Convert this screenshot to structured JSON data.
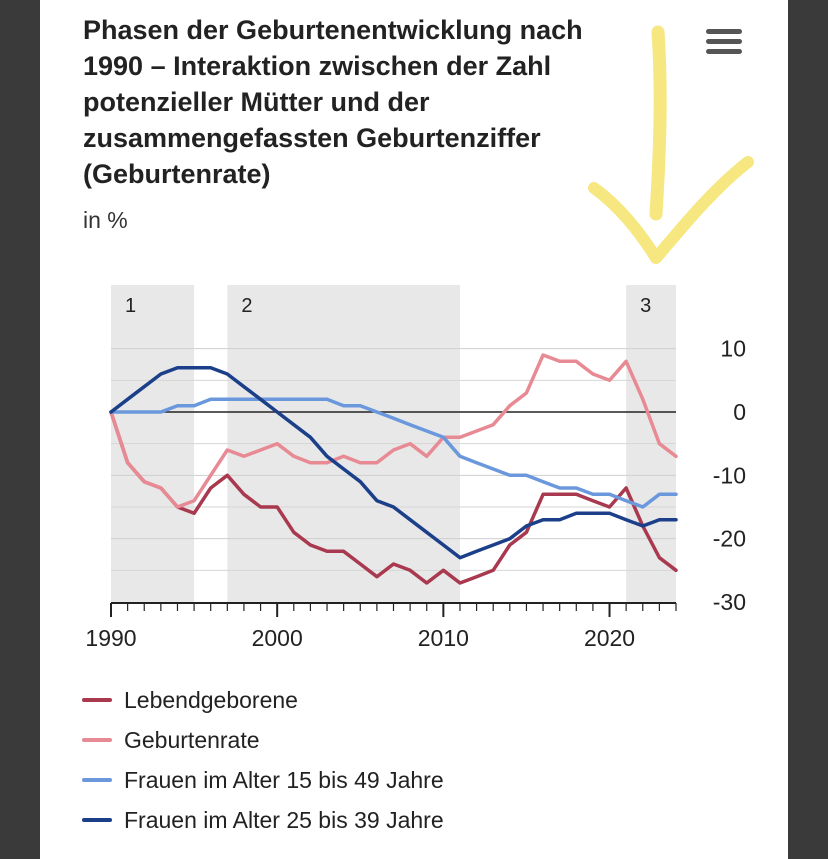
{
  "title": "Phasen der Geburtenentwicklung nach 1990 – Interaktion zwischen der Zahl potenzieller Mütter und der zusammengefassten Geburtenziffer (Geburtenrate)",
  "unit_label": "in %",
  "menu_icon": "hamburger-menu-icon",
  "colors": {
    "lebendgeborene": "#a8394e",
    "geburtenrate": "#e88a94",
    "frauen_15_49": "#6b98dc",
    "frauen_25_39": "#1c3f8a",
    "phase_shade": "#e8e8e8",
    "annotation": "#f5e36a"
  },
  "chart_data": {
    "type": "line",
    "title": "Phasen der Geburtenentwicklung nach 1990 – Interaktion zwischen der Zahl potenzieller Mütter und der zusammengefassten Geburtenziffer (Geburtenrate)",
    "ylabel": "in %",
    "xlim": [
      1990,
      2024
    ],
    "ylim": [
      -30,
      15
    ],
    "x_ticks": [
      1990,
      2000,
      2010,
      2020
    ],
    "y_ticks": [
      10,
      0,
      -10,
      -20,
      -30
    ],
    "y_tick_labels": [
      "10",
      "0",
      "-10",
      "-20",
      "-30"
    ],
    "phases": [
      {
        "label": "1",
        "from": 1990,
        "to": 1995
      },
      {
        "label": "2",
        "from": 1997,
        "to": 2011
      },
      {
        "label": "3",
        "from": 2021,
        "to": 2024
      }
    ],
    "x": [
      1990,
      1991,
      1992,
      1993,
      1994,
      1995,
      1996,
      1997,
      1998,
      1999,
      2000,
      2001,
      2002,
      2003,
      2004,
      2005,
      2006,
      2007,
      2008,
      2009,
      2010,
      2011,
      2012,
      2013,
      2014,
      2015,
      2016,
      2017,
      2018,
      2019,
      2020,
      2021,
      2022,
      2023,
      2024
    ],
    "series": [
      {
        "name": "Lebendgeborene",
        "color_key": "lebendgeborene",
        "values": [
          0,
          -8,
          -11,
          -12,
          -15,
          -16,
          -12,
          -10,
          -13,
          -15,
          -15,
          -19,
          -21,
          -22,
          -22,
          -24,
          -26,
          -24,
          -25,
          -27,
          -25,
          -27,
          -26,
          -25,
          -21,
          -19,
          -13,
          -13,
          -13,
          -14,
          -15,
          -12,
          -18,
          -23,
          -25
        ]
      },
      {
        "name": "Geburtenrate",
        "color_key": "geburtenrate",
        "values": [
          0,
          -8,
          -11,
          -12,
          -15,
          -14,
          -10,
          -6,
          -7,
          -6,
          -5,
          -7,
          -8,
          -8,
          -7,
          -8,
          -8,
          -6,
          -5,
          -7,
          -4,
          -4,
          -3,
          -2,
          1,
          3,
          9,
          8,
          8,
          6,
          5,
          8,
          2,
          -5,
          -7
        ]
      },
      {
        "name": "Frauen im Alter 15 bis 49 Jahre",
        "color_key": "frauen_15_49",
        "values": [
          0,
          0,
          0,
          0,
          1,
          1,
          2,
          2,
          2,
          2,
          2,
          2,
          2,
          2,
          1,
          1,
          0,
          -1,
          -2,
          -3,
          -4,
          -7,
          -8,
          -9,
          -10,
          -10,
          -11,
          -12,
          -12,
          -13,
          -13,
          -14,
          -15,
          -13,
          -13
        ]
      },
      {
        "name": "Frauen im Alter 25 bis 39 Jahre",
        "color_key": "frauen_25_39",
        "values": [
          0,
          2,
          4,
          6,
          7,
          7,
          7,
          6,
          4,
          2,
          0,
          -2,
          -4,
          -7,
          -9,
          -11,
          -14,
          -15,
          -17,
          -19,
          -21,
          -23,
          -22,
          -21,
          -20,
          -18,
          -17,
          -17,
          -16,
          -16,
          -16,
          -17,
          -18,
          -17,
          -17
        ]
      }
    ],
    "legend_position": "bottom-left"
  },
  "legend": [
    {
      "label": "Lebendgeborene",
      "color_key": "lebendgeborene"
    },
    {
      "label": "Geburtenrate",
      "color_key": "geburtenrate"
    },
    {
      "label": "Frauen im Alter 15 bis 49 Jahre",
      "color_key": "frauen_15_49"
    },
    {
      "label": "Frauen im Alter 25 bis 39 Jahre",
      "color_key": "frauen_25_39"
    }
  ]
}
